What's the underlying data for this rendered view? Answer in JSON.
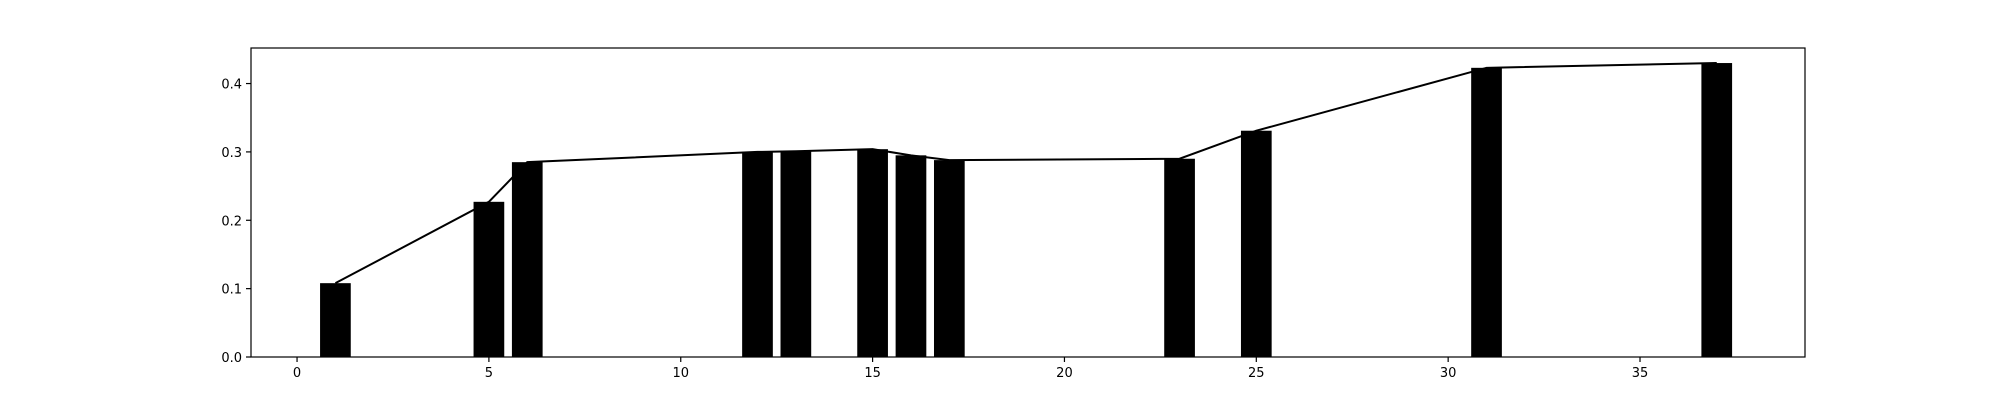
{
  "chart_data": {
    "type": "bar",
    "x": [
      1,
      5,
      6,
      12,
      13,
      15,
      16,
      17,
      23,
      25,
      31,
      37
    ],
    "values": [
      0.108,
      0.227,
      0.285,
      0.3,
      0.301,
      0.304,
      0.295,
      0.288,
      0.29,
      0.331,
      0.423,
      0.43
    ],
    "overlay": {
      "type": "line",
      "x": [
        1,
        5,
        6,
        12,
        13,
        15,
        16,
        17,
        23,
        25,
        31,
        37
      ],
      "values": [
        0.108,
        0.227,
        0.285,
        0.3,
        0.301,
        0.304,
        0.295,
        0.288,
        0.29,
        0.331,
        0.423,
        0.43
      ]
    },
    "title": "",
    "xlabel": "",
    "ylabel": "",
    "xlim": [
      -1.2,
      39.3
    ],
    "ylim": [
      0.0,
      0.452
    ],
    "xticks": [
      0,
      5,
      10,
      15,
      20,
      25,
      30,
      35
    ],
    "yticks": [
      0.0,
      0.1,
      0.2,
      0.3,
      0.4
    ],
    "xtick_labels": [
      "0",
      "5",
      "10",
      "15",
      "20",
      "25",
      "30",
      "35"
    ],
    "ytick_labels": [
      "0.0",
      "0.1",
      "0.2",
      "0.3",
      "0.4"
    ],
    "bar_width": 0.8,
    "grid": false,
    "legend": "none",
    "colors": {
      "bars": "#000000",
      "line": "#000000",
      "axes": "#000000"
    }
  }
}
